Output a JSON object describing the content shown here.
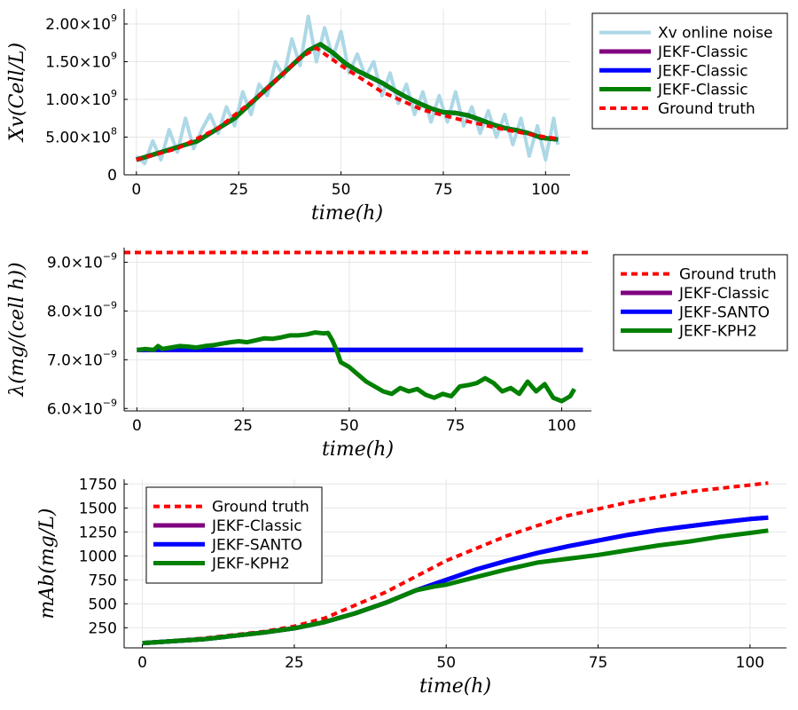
{
  "chart_data": [
    {
      "type": "line",
      "xlabel": "time(h)",
      "ylabel": "Xv(Cell/L)",
      "xlim": [
        -3,
        106
      ],
      "ylim": [
        0,
        2200000000.0
      ],
      "xticks": [
        0,
        25,
        50,
        75,
        100
      ],
      "xtick_labels": [
        "0",
        "25",
        "50",
        "75",
        "100"
      ],
      "yticks": [
        0,
        500000000.0,
        1000000000.0,
        1500000000.0,
        2000000000.0
      ],
      "ytick_labels": [
        {
          "mant": "0",
          "exp": ""
        },
        {
          "mant": "5.00×10",
          "exp": "8"
        },
        {
          "mant": "1.00×10",
          "exp": "9"
        },
        {
          "mant": "1.50×10",
          "exp": "9"
        },
        {
          "mant": "2.00×10",
          "exp": "9"
        }
      ],
      "grid": true,
      "legend_position": "outside-right",
      "series": [
        {
          "name": "Xv online noise",
          "color": "#add8e6",
          "style": "solid",
          "width": 4,
          "x": [
            0,
            2,
            4,
            6,
            8,
            10,
            12,
            14,
            16,
            18,
            20,
            22,
            24,
            26,
            28,
            30,
            32,
            34,
            36,
            38,
            40,
            42,
            44,
            46,
            48,
            50,
            52,
            54,
            56,
            58,
            60,
            62,
            64,
            66,
            68,
            70,
            72,
            74,
            76,
            78,
            80,
            82,
            84,
            86,
            88,
            90,
            92,
            94,
            96,
            98,
            100,
            102,
            103
          ],
          "y": [
            250000000.0,
            150000000.0,
            450000000.0,
            200000000.0,
            600000000.0,
            300000000.0,
            750000000.0,
            350000000.0,
            600000000.0,
            800000000.0,
            550000000.0,
            900000000.0,
            650000000.0,
            1100000000.0,
            800000000.0,
            1200000000.0,
            1050000000.0,
            1500000000.0,
            1300000000.0,
            1800000000.0,
            1450000000.0,
            2100000000.0,
            1500000000.0,
            1950000000.0,
            1550000000.0,
            1900000000.0,
            1350000000.0,
            1600000000.0,
            1300000000.0,
            1500000000.0,
            1050000000.0,
            1350000000.0,
            950000000.0,
            1200000000.0,
            800000000.0,
            1100000000.0,
            700000000.0,
            1050000000.0,
            700000000.0,
            1100000000.0,
            650000000.0,
            900000000.0,
            550000000.0,
            850000000.0,
            500000000.0,
            800000000.0,
            400000000.0,
            750000000.0,
            250000000.0,
            650000000.0,
            200000000.0,
            750000000.0,
            400000000.0
          ]
        },
        {
          "name": "JEKF-Classic",
          "color": "#800080",
          "style": "solid",
          "width": 5,
          "x": [
            0,
            3,
            6,
            9,
            12,
            15,
            18,
            21,
            24,
            27,
            30,
            33,
            36,
            39,
            42,
            45,
            48,
            51,
            54,
            57,
            60,
            63,
            66,
            69,
            72,
            75,
            78,
            81,
            84,
            87,
            90,
            93,
            96,
            99,
            103
          ],
          "y": [
            200000000.0,
            250000000.0,
            300000000.0,
            350000000.0,
            400000000.0,
            450000000.0,
            550000000.0,
            650000000.0,
            750000000.0,
            900000000.0,
            1050000000.0,
            1200000000.0,
            1350000000.0,
            1500000000.0,
            1650000000.0,
            1730000000.0,
            1620000000.0,
            1480000000.0,
            1380000000.0,
            1300000000.0,
            1220000000.0,
            1120000000.0,
            1030000000.0,
            950000000.0,
            880000000.0,
            830000000.0,
            820000000.0,
            790000000.0,
            730000000.0,
            670000000.0,
            620000000.0,
            590000000.0,
            550000000.0,
            490000000.0,
            470000000.0
          ]
        },
        {
          "name": "JEKF-Classic",
          "color": "#0000ff",
          "style": "solid",
          "width": 5,
          "x": [
            0,
            3,
            6,
            9,
            12,
            15,
            18,
            21,
            24,
            27,
            30,
            33,
            36,
            39,
            42,
            45,
            48,
            51,
            54,
            57,
            60,
            63,
            66,
            69,
            72,
            75,
            78,
            81,
            84,
            87,
            90,
            93,
            96,
            99,
            103
          ],
          "y": [
            200000000.0,
            250000000.0,
            300000000.0,
            350000000.0,
            400000000.0,
            450000000.0,
            550000000.0,
            650000000.0,
            750000000.0,
            900000000.0,
            1050000000.0,
            1200000000.0,
            1350000000.0,
            1500000000.0,
            1650000000.0,
            1730000000.0,
            1620000000.0,
            1480000000.0,
            1380000000.0,
            1300000000.0,
            1220000000.0,
            1120000000.0,
            1030000000.0,
            950000000.0,
            880000000.0,
            830000000.0,
            820000000.0,
            790000000.0,
            730000000.0,
            670000000.0,
            620000000.0,
            590000000.0,
            550000000.0,
            490000000.0,
            470000000.0
          ]
        },
        {
          "name": "JEKF-Classic",
          "color": "#008000",
          "style": "solid",
          "width": 5,
          "x": [
            0,
            3,
            6,
            9,
            12,
            15,
            18,
            21,
            24,
            27,
            30,
            33,
            36,
            39,
            42,
            45,
            48,
            51,
            54,
            57,
            60,
            63,
            66,
            69,
            72,
            75,
            78,
            81,
            84,
            87,
            90,
            93,
            96,
            99,
            103
          ],
          "y": [
            200000000.0,
            250000000.0,
            300000000.0,
            350000000.0,
            400000000.0,
            450000000.0,
            550000000.0,
            650000000.0,
            750000000.0,
            900000000.0,
            1050000000.0,
            1200000000.0,
            1350000000.0,
            1500000000.0,
            1650000000.0,
            1730000000.0,
            1620000000.0,
            1480000000.0,
            1380000000.0,
            1300000000.0,
            1220000000.0,
            1120000000.0,
            1030000000.0,
            950000000.0,
            880000000.0,
            830000000.0,
            820000000.0,
            790000000.0,
            730000000.0,
            670000000.0,
            620000000.0,
            590000000.0,
            550000000.0,
            490000000.0,
            470000000.0
          ]
        },
        {
          "name": "Ground truth",
          "color": "#ff0000",
          "style": "dashed",
          "width": 4,
          "x": [
            0,
            10,
            20,
            30,
            35,
            40,
            44,
            50,
            60,
            70,
            80,
            90,
            100,
            103
          ],
          "y": [
            200000000.0,
            350000000.0,
            620000000.0,
            1050000000.0,
            1300000000.0,
            1550000000.0,
            1680000000.0,
            1450000000.0,
            1100000000.0,
            860000000.0,
            720000000.0,
            600000000.0,
            500000000.0,
            480000000.0
          ]
        }
      ]
    },
    {
      "type": "line",
      "xlabel": "time(h)",
      "ylabel": "λ(mg/(cell h))",
      "xlim": [
        -3,
        107
      ],
      "ylim": [
        5.95e-09,
        9.3e-09
      ],
      "xticks": [
        0,
        25,
        50,
        75,
        100
      ],
      "xtick_labels": [
        "0",
        "25",
        "50",
        "75",
        "100"
      ],
      "yticks": [
        6e-09,
        7e-09,
        8e-09,
        9e-09
      ],
      "ytick_labels": [
        {
          "mant": "6.0×10",
          "exp": "−9"
        },
        {
          "mant": "7.0×10",
          "exp": "−9"
        },
        {
          "mant": "8.0×10",
          "exp": "−9"
        },
        {
          "mant": "9.0×10",
          "exp": "−9"
        }
      ],
      "grid": true,
      "legend_position": "outside-right",
      "series": [
        {
          "name": "Ground truth",
          "color": "#ff0000",
          "style": "dashed",
          "width": 4,
          "x": [
            -3,
            107
          ],
          "y": [
            9.2e-09,
            9.2e-09
          ]
        },
        {
          "name": "JEKF-Classic",
          "color": "#800080",
          "style": "solid",
          "width": 5,
          "x": [
            0,
            105
          ],
          "y": [
            7.2e-09,
            7.2e-09
          ]
        },
        {
          "name": "JEKF-SANTO",
          "color": "#0000ff",
          "style": "solid",
          "width": 5,
          "x": [
            0,
            105
          ],
          "y": [
            7.2e-09,
            7.2e-09
          ]
        },
        {
          "name": "JEKF-KPH2",
          "color": "#008000",
          "style": "solid",
          "width": 5,
          "x": [
            0,
            2,
            4,
            5,
            6,
            8,
            10,
            12,
            14,
            16,
            18,
            20,
            22,
            24,
            26,
            28,
            30,
            32,
            34,
            36,
            38,
            40,
            42,
            44,
            45,
            46,
            47,
            48,
            50,
            52,
            54,
            56,
            58,
            60,
            62,
            64,
            66,
            68,
            70,
            72,
            74,
            76,
            78,
            80,
            82,
            84,
            86,
            88,
            90,
            92,
            94,
            96,
            98,
            100,
            102,
            103
          ],
          "y": [
            7.2e-09,
            7.22e-09,
            7.2e-09,
            7.28e-09,
            7.22e-09,
            7.25e-09,
            7.28e-09,
            7.27e-09,
            7.25e-09,
            7.28e-09,
            7.3e-09,
            7.33e-09,
            7.36e-09,
            7.38e-09,
            7.36e-09,
            7.4e-09,
            7.44e-09,
            7.43e-09,
            7.46e-09,
            7.5e-09,
            7.5e-09,
            7.52e-09,
            7.56e-09,
            7.54e-09,
            7.55e-09,
            7.4e-09,
            7.2e-09,
            6.95e-09,
            6.85e-09,
            6.7e-09,
            6.55e-09,
            6.45e-09,
            6.35e-09,
            6.3e-09,
            6.42e-09,
            6.35e-09,
            6.4e-09,
            6.28e-09,
            6.22e-09,
            6.3e-09,
            6.25e-09,
            6.45e-09,
            6.48e-09,
            6.52e-09,
            6.62e-09,
            6.52e-09,
            6.35e-09,
            6.42e-09,
            6.3e-09,
            6.55e-09,
            6.35e-09,
            6.5e-09,
            6.22e-09,
            6.15e-09,
            6.25e-09,
            6.4e-09
          ]
        }
      ]
    },
    {
      "type": "line",
      "xlabel": "time(h)",
      "ylabel": "mAb(mg/L)",
      "xlim": [
        -3,
        106
      ],
      "ylim": [
        40,
        1800
      ],
      "xticks": [
        0,
        25,
        50,
        75,
        100
      ],
      "xtick_labels": [
        "0",
        "25",
        "50",
        "75",
        "100"
      ],
      "yticks": [
        250,
        500,
        750,
        1000,
        1250,
        1500,
        1750
      ],
      "ytick_labels": [
        {
          "mant": "250",
          "exp": ""
        },
        {
          "mant": "500",
          "exp": ""
        },
        {
          "mant": "750",
          "exp": ""
        },
        {
          "mant": "1000",
          "exp": ""
        },
        {
          "mant": "1250",
          "exp": ""
        },
        {
          "mant": "1500",
          "exp": ""
        },
        {
          "mant": "1750",
          "exp": ""
        }
      ],
      "grid": true,
      "legend_position": "top-left",
      "series": [
        {
          "name": "Ground truth",
          "color": "#ff0000",
          "style": "dashed",
          "width": 4,
          "x": [
            0,
            10,
            20,
            25,
            30,
            40,
            50,
            60,
            70,
            80,
            90,
            100,
            103
          ],
          "y": [
            90,
            140,
            210,
            265,
            350,
            620,
            950,
            1210,
            1420,
            1560,
            1670,
            1740,
            1760
          ]
        },
        {
          "name": "JEKF-Classic",
          "color": "#800080",
          "style": "solid",
          "width": 5,
          "x": [
            0,
            10,
            20,
            25,
            30,
            35,
            40,
            45,
            50,
            55,
            60,
            65,
            70,
            75,
            80,
            85,
            90,
            95,
            100,
            103
          ],
          "y": [
            90,
            130,
            200,
            245,
            310,
            400,
            510,
            640,
            750,
            860,
            950,
            1030,
            1100,
            1160,
            1220,
            1270,
            1310,
            1350,
            1385,
            1400
          ]
        },
        {
          "name": "JEKF-SANTO",
          "color": "#0000ff",
          "style": "solid",
          "width": 5,
          "x": [
            0,
            10,
            20,
            25,
            30,
            35,
            40,
            45,
            50,
            55,
            60,
            65,
            70,
            75,
            80,
            85,
            90,
            95,
            100,
            103
          ],
          "y": [
            90,
            130,
            200,
            245,
            310,
            400,
            510,
            640,
            750,
            860,
            950,
            1030,
            1100,
            1160,
            1220,
            1270,
            1310,
            1350,
            1385,
            1400
          ]
        },
        {
          "name": "JEKF-KPH2",
          "color": "#008000",
          "style": "solid",
          "width": 5,
          "x": [
            0,
            10,
            20,
            25,
            30,
            35,
            40,
            45,
            48,
            50,
            55,
            60,
            65,
            70,
            75,
            80,
            85,
            90,
            95,
            100,
            103
          ],
          "y": [
            90,
            130,
            200,
            245,
            310,
            400,
            510,
            640,
            680,
            700,
            780,
            860,
            930,
            970,
            1010,
            1060,
            1110,
            1150,
            1200,
            1240,
            1265
          ]
        }
      ]
    }
  ]
}
